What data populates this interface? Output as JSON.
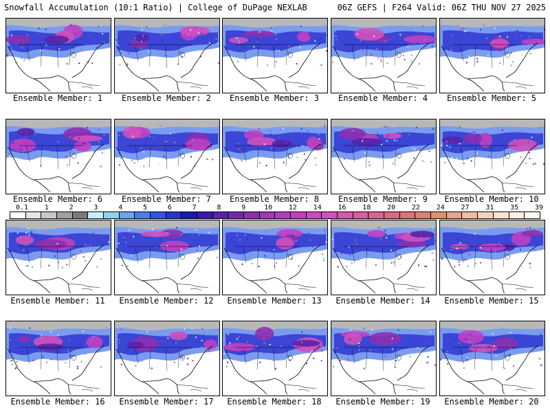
{
  "header": {
    "left": "Snowfall Accumulation (10:1 Ratio) | College of DuPage NEXLAB",
    "right": "06Z GEFS | F264 Valid: 06Z THU NOV 27 2025"
  },
  "panels": [
    {
      "label": "Ensemble Member: 1"
    },
    {
      "label": "Ensemble Member: 2"
    },
    {
      "label": "Ensemble Member: 3"
    },
    {
      "label": "Ensemble Member: 4"
    },
    {
      "label": "Ensemble Member: 5"
    },
    {
      "label": "Ensemble Member: 6"
    },
    {
      "label": "Ensemble Member: 7"
    },
    {
      "label": "Ensemble Member: 8"
    },
    {
      "label": "Ensemble Member: 9"
    },
    {
      "label": "Ensemble Member: 10"
    },
    {
      "label": "Ensemble Member: 11"
    },
    {
      "label": "Ensemble Member: 12"
    },
    {
      "label": "Ensemble Member: 13"
    },
    {
      "label": "Ensemble Member: 14"
    },
    {
      "label": "Ensemble Member: 15"
    },
    {
      "label": "Ensemble Member: 16"
    },
    {
      "label": "Ensemble Member: 17"
    },
    {
      "label": "Ensemble Member: 18"
    },
    {
      "label": "Ensemble Member: 19"
    },
    {
      "label": "Ensemble Member: 20"
    }
  ],
  "colorbar": {
    "ticks": [
      "0.1",
      "1",
      "2",
      "3",
      "4",
      "5",
      "6",
      "7",
      "8",
      "9",
      "10",
      "12",
      "14",
      "16",
      "18",
      "20",
      "22",
      "24",
      "27",
      "31",
      "35",
      "39"
    ],
    "colors": [
      "#ffffff",
      "#e6e6e6",
      "#c8c8c8",
      "#a0a0a0",
      "#7a7a7a",
      "#c6f0fb",
      "#8fd3f0",
      "#6aa6ea",
      "#4a7fe6",
      "#3355e0",
      "#2436c8",
      "#1a1ab0",
      "#3a1aa8",
      "#5a22a6",
      "#7428a8",
      "#8c30b0",
      "#a038b8",
      "#b03cc0",
      "#c040c4",
      "#cc48c4",
      "#d050bc",
      "#d458b0",
      "#d85ea0",
      "#d86492",
      "#d86a84",
      "#d8747a",
      "#dc8070",
      "#e09070",
      "#e8a488",
      "#f0bca4",
      "#f6d2bc",
      "#fae2d0",
      "#fdf0e6",
      "#fff8f0"
    ]
  }
}
